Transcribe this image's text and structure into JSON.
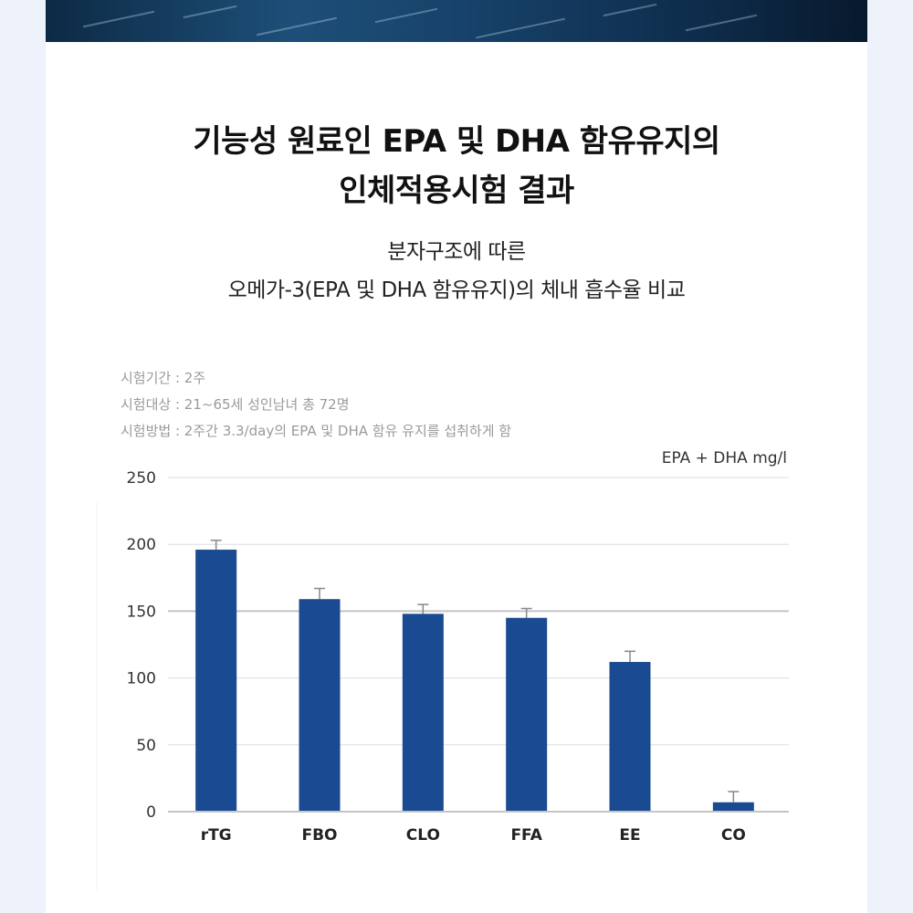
{
  "title": {
    "line1": "기능성 원료인 EPA 및 DHA 함유유지의",
    "line2": "인체적용시험 결과"
  },
  "subtitle": {
    "line1": "분자구조에 따른",
    "line2": "오메가-3(EPA 및 DHA 함유유지)의 체내 흡수율 비교"
  },
  "study_info": [
    "시험기간 : 2주",
    "시험대상 : 21~65세 성인남녀 총 72명",
    "시험방법 : 2주간 3.3/day의 EPA 및 DHA 함유 유지를 섭취하게 함"
  ],
  "colors": {
    "bar": "#1a4a91",
    "error_bar": "#888888",
    "grid": "#dddddd",
    "grid_strong": "#c4c4c4"
  },
  "chart_data": {
    "type": "bar",
    "title": "",
    "xlabel": "",
    "ylabel": "EPA + DHA mg/l",
    "categories": [
      "rTG",
      "FBO",
      "CLO",
      "FFA",
      "EE",
      "CO"
    ],
    "values": [
      196,
      159,
      148,
      145,
      112,
      7
    ],
    "errors": [
      7,
      8,
      7,
      7,
      8,
      8
    ],
    "ylim": [
      0,
      250
    ],
    "yticks": [
      0,
      50,
      100,
      150,
      200,
      250
    ],
    "grid": true,
    "legend": "none"
  }
}
